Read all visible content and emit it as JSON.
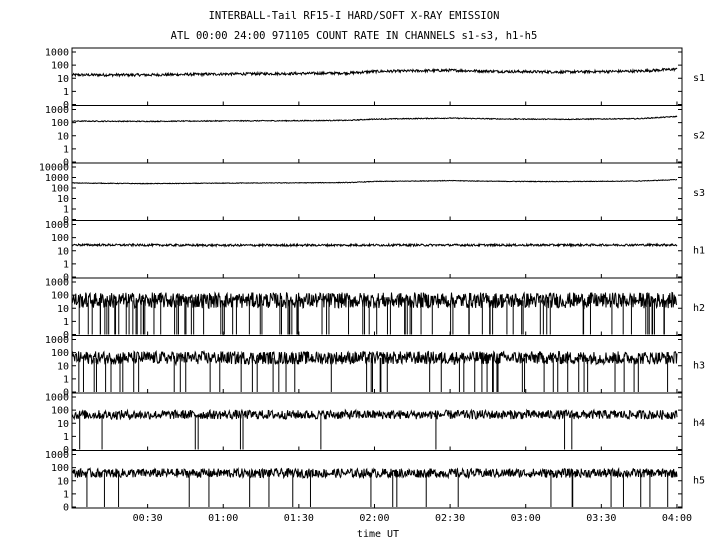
{
  "title": "INTERBALL-Tail RF15-I HARD/SOFT X-RAY EMISSION",
  "subtitle": "ATL 00:00 24:00 971105  COUNT RATE IN CHANNELS s1-s3, h1-h5",
  "chart_data": {
    "type": "line",
    "title": "INTERBALL-Tail RF15-I HARD/SOFT X-RAY EMISSION",
    "subtitle": "ATL 00:00 24:00 971105  COUNT RATE IN CHANNELS s1-s3, h1-h5",
    "xlabel": "time UT",
    "x_ticks": [
      "00:30",
      "01:00",
      "01:30",
      "02:00",
      "02:30",
      "03:00",
      "03:30",
      "04:00"
    ],
    "x_tick_minutes": [
      30,
      60,
      90,
      120,
      150,
      180,
      210,
      240
    ],
    "xlim_minutes": [
      0,
      242
    ],
    "y_scale": "log",
    "panels": [
      {
        "name": "s1",
        "ylim": [
          0.1,
          1000
        ],
        "y_ticks": [
          "1000",
          "100",
          "10",
          "1",
          "0"
        ],
        "y_tick_values": [
          1000,
          100,
          10,
          1,
          0.1
        ],
        "trend": [
          [
            0,
            18
          ],
          [
            30,
            18
          ],
          [
            60,
            21
          ],
          [
            90,
            23
          ],
          [
            110,
            25
          ],
          [
            120,
            33
          ],
          [
            150,
            40
          ],
          [
            170,
            33
          ],
          [
            195,
            30
          ],
          [
            225,
            35
          ],
          [
            242,
            52
          ]
        ],
        "noise": 0.1,
        "dropouts": 0
      },
      {
        "name": "s2",
        "ylim": [
          0.1,
          1000
        ],
        "y_ticks": [
          "1000",
          "100",
          "10",
          "1",
          "0"
        ],
        "y_tick_values": [
          1000,
          100,
          10,
          1,
          0.1
        ],
        "trend": [
          [
            0,
            130
          ],
          [
            30,
            125
          ],
          [
            60,
            135
          ],
          [
            90,
            140
          ],
          [
            110,
            150
          ],
          [
            120,
            185
          ],
          [
            150,
            220
          ],
          [
            170,
            190
          ],
          [
            195,
            180
          ],
          [
            225,
            200
          ],
          [
            242,
            310
          ]
        ],
        "noise": 0.035,
        "dropouts": 0
      },
      {
        "name": "s3",
        "ylim": [
          0.1,
          10000
        ],
        "y_ticks": [
          "10000",
          "1000",
          "100",
          "10",
          "1",
          "0"
        ],
        "y_tick_values": [
          10000,
          1000,
          100,
          10,
          1,
          0.1
        ],
        "trend": [
          [
            0,
            300
          ],
          [
            30,
            260
          ],
          [
            60,
            290
          ],
          [
            90,
            310
          ],
          [
            110,
            330
          ],
          [
            120,
            420
          ],
          [
            150,
            500
          ],
          [
            170,
            430
          ],
          [
            195,
            410
          ],
          [
            225,
            460
          ],
          [
            242,
            650
          ]
        ],
        "noise": 0.03,
        "dropouts": 0
      },
      {
        "name": "h1",
        "ylim": [
          0.1,
          1000
        ],
        "y_ticks": [
          "1000",
          "100",
          "10",
          "1",
          "0"
        ],
        "y_tick_values": [
          1000,
          100,
          10,
          1,
          0.1
        ],
        "trend": [
          [
            0,
            28
          ],
          [
            60,
            26
          ],
          [
            120,
            27
          ],
          [
            180,
            27
          ],
          [
            242,
            28
          ]
        ],
        "noise": 0.08,
        "dropouts": 0
      },
      {
        "name": "h2",
        "ylim": [
          0.1,
          1000
        ],
        "y_ticks": [
          "1000",
          "100",
          "10",
          "1",
          "0"
        ],
        "y_tick_values": [
          1000,
          100,
          10,
          1,
          0.1
        ],
        "trend": [
          [
            0,
            40
          ],
          [
            120,
            40
          ],
          [
            242,
            40
          ]
        ],
        "noise": 0.6,
        "dropouts": 95
      },
      {
        "name": "h3",
        "ylim": [
          0.1,
          1000
        ],
        "y_ticks": [
          "1000",
          "100",
          "10",
          "1",
          "0"
        ],
        "y_tick_values": [
          1000,
          100,
          10,
          1,
          0.1
        ],
        "trend": [
          [
            0,
            40
          ],
          [
            120,
            40
          ],
          [
            242,
            40
          ]
        ],
        "noise": 0.5,
        "dropouts": 55
      },
      {
        "name": "h4",
        "ylim": [
          0.1,
          1000
        ],
        "y_ticks": [
          "1000",
          "100",
          "10",
          "1",
          "0"
        ],
        "y_tick_values": [
          1000,
          100,
          10,
          1,
          0.1
        ],
        "trend": [
          [
            0,
            45
          ],
          [
            120,
            45
          ],
          [
            242,
            45
          ]
        ],
        "noise": 0.35,
        "dropouts": 10
      },
      {
        "name": "h5",
        "ylim": [
          0.1,
          1000
        ],
        "y_ticks": [
          "1000",
          "100",
          "10",
          "1",
          "0"
        ],
        "y_tick_values": [
          1000,
          100,
          10,
          1,
          0.1
        ],
        "trend": [
          [
            0,
            38
          ],
          [
            120,
            38
          ],
          [
            242,
            38
          ]
        ],
        "noise": 0.35,
        "dropouts": 22
      }
    ]
  }
}
